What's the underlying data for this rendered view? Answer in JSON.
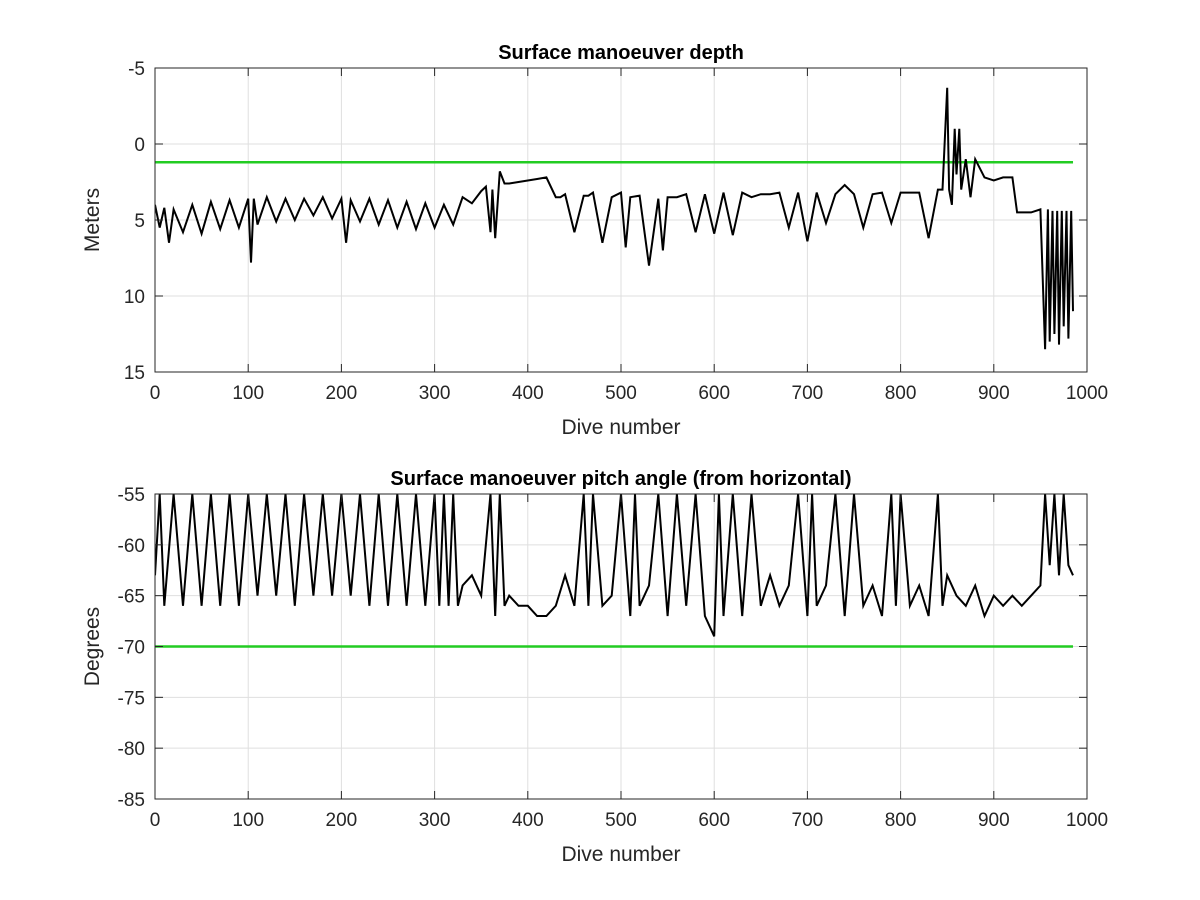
{
  "chart_data": [
    {
      "type": "line",
      "title": "Surface manoeuver depth",
      "xlabel": "Dive number",
      "ylabel": "Meters",
      "xlim": [
        0,
        1000
      ],
      "ylim": [
        -5,
        15
      ],
      "y_reversed": true,
      "grid": true,
      "xticks": [
        0,
        100,
        200,
        300,
        400,
        500,
        600,
        700,
        800,
        900,
        1000
      ],
      "yticks": [
        -5,
        0,
        5,
        10,
        15
      ],
      "threshold": {
        "value": 1.2,
        "x_range": [
          0,
          985
        ],
        "color": "#22cc22"
      },
      "series": [
        {
          "color": "#000000",
          "x": [
            0,
            5,
            10,
            15,
            20,
            30,
            40,
            50,
            60,
            70,
            80,
            90,
            100,
            103,
            106,
            110,
            120,
            130,
            140,
            150,
            160,
            170,
            180,
            190,
            200,
            205,
            210,
            220,
            230,
            240,
            250,
            260,
            270,
            280,
            290,
            300,
            310,
            320,
            330,
            340,
            350,
            355,
            360,
            362,
            365,
            370,
            375,
            380,
            390,
            400,
            410,
            420,
            430,
            435,
            440,
            450,
            460,
            465,
            470,
            480,
            490,
            500,
            505,
            510,
            520,
            530,
            540,
            545,
            550,
            560,
            570,
            580,
            590,
            600,
            610,
            620,
            630,
            640,
            650,
            660,
            670,
            680,
            690,
            700,
            710,
            720,
            730,
            740,
            750,
            760,
            770,
            780,
            790,
            800,
            810,
            820,
            830,
            840,
            845,
            850,
            852,
            855,
            858,
            860,
            863,
            865,
            870,
            875,
            880,
            890,
            900,
            910,
            920,
            925,
            930,
            940,
            950,
            955,
            958,
            960,
            963,
            965,
            968,
            970,
            973,
            975,
            978,
            980,
            983,
            985
          ],
          "y": [
            4.0,
            5.5,
            4.2,
            6.5,
            4.3,
            5.8,
            4.0,
            5.9,
            3.8,
            5.6,
            3.7,
            5.5,
            3.6,
            7.8,
            3.6,
            5.3,
            3.5,
            5.1,
            3.6,
            5.0,
            3.6,
            4.7,
            3.5,
            4.9,
            3.6,
            6.5,
            3.7,
            5.1,
            3.6,
            5.3,
            3.7,
            5.5,
            3.8,
            5.6,
            3.9,
            5.5,
            4.0,
            5.3,
            3.5,
            3.9,
            3.1,
            2.8,
            5.8,
            3.0,
            6.2,
            1.8,
            2.6,
            2.6,
            2.5,
            2.4,
            2.3,
            2.2,
            3.5,
            3.5,
            3.3,
            5.8,
            3.4,
            3.4,
            3.2,
            6.5,
            3.5,
            3.2,
            6.8,
            3.5,
            3.4,
            8.0,
            3.6,
            7.0,
            3.5,
            3.5,
            3.3,
            5.8,
            3.3,
            5.9,
            3.2,
            6.0,
            3.2,
            3.5,
            3.3,
            3.3,
            3.2,
            5.5,
            3.2,
            6.4,
            3.2,
            5.2,
            3.3,
            2.7,
            3.3,
            5.5,
            3.3,
            3.2,
            5.2,
            3.2,
            3.2,
            3.2,
            6.2,
            3.0,
            3.0,
            -3.7,
            3.0,
            4.0,
            -1.0,
            2.0,
            -1.0,
            3.0,
            1.0,
            3.5,
            1.0,
            2.2,
            2.4,
            2.2,
            2.2,
            4.5,
            4.5,
            4.5,
            4.3,
            13.5,
            4.3,
            13.0,
            4.4,
            12.5,
            4.4,
            13.2,
            4.4,
            12.0,
            4.4,
            12.8,
            4.4,
            11.0
          ]
        }
      ]
    },
    {
      "type": "line",
      "title": "Surface manoeuver pitch angle (from horizontal)",
      "xlabel": "Dive number",
      "ylabel": "Degrees",
      "xlim": [
        0,
        1000
      ],
      "ylim": [
        -85,
        -55
      ],
      "grid": true,
      "xticks": [
        0,
        100,
        200,
        300,
        400,
        500,
        600,
        700,
        800,
        900,
        1000
      ],
      "yticks": [
        -85,
        -80,
        -75,
        -70,
        -65,
        -60,
        -55
      ],
      "threshold": {
        "value": -70,
        "x_range": [
          0,
          985
        ],
        "color": "#22cc22"
      },
      "series": [
        {
          "color": "#000000",
          "x": [
            0,
            5,
            10,
            20,
            30,
            40,
            50,
            60,
            70,
            80,
            90,
            100,
            110,
            120,
            130,
            140,
            150,
            160,
            170,
            180,
            190,
            200,
            210,
            220,
            230,
            240,
            250,
            260,
            270,
            280,
            290,
            300,
            305,
            310,
            315,
            320,
            325,
            330,
            340,
            350,
            360,
            365,
            370,
            375,
            380,
            390,
            400,
            410,
            420,
            430,
            440,
            450,
            460,
            465,
            470,
            480,
            490,
            500,
            510,
            515,
            520,
            530,
            540,
            550,
            560,
            570,
            580,
            590,
            600,
            605,
            610,
            620,
            630,
            640,
            650,
            660,
            670,
            680,
            690,
            700,
            705,
            710,
            720,
            730,
            740,
            750,
            760,
            770,
            780,
            790,
            795,
            800,
            810,
            820,
            830,
            840,
            845,
            850,
            860,
            870,
            880,
            890,
            900,
            910,
            920,
            930,
            940,
            950,
            955,
            960,
            965,
            970,
            975,
            980,
            985
          ],
          "y": [
            -63,
            -55,
            -66,
            -55,
            -66,
            -55,
            -66,
            -55,
            -66,
            -55,
            -66,
            -55,
            -65,
            -55,
            -65,
            -55,
            -66,
            -55,
            -65,
            -55,
            -65,
            -55,
            -65,
            -55,
            -66,
            -55,
            -66,
            -55,
            -66,
            -55,
            -66,
            -55,
            -66,
            -55,
            -66,
            -55,
            -66,
            -64,
            -63,
            -65,
            -55,
            -67,
            -55,
            -66,
            -65,
            -66,
            -66,
            -67,
            -67,
            -66,
            -63,
            -66,
            -55,
            -66,
            -55,
            -66,
            -65,
            -55,
            -67,
            -55,
            -66,
            -64,
            -55,
            -67,
            -55,
            -66,
            -55,
            -67,
            -69,
            -55,
            -67,
            -55,
            -67,
            -55,
            -66,
            -63,
            -66,
            -64,
            -55,
            -67,
            -55,
            -66,
            -64,
            -55,
            -67,
            -55,
            -66,
            -64,
            -67,
            -55,
            -66,
            -55,
            -66,
            -64,
            -67,
            -55,
            -66,
            -63,
            -65,
            -66,
            -64,
            -67,
            -65,
            -66,
            -65,
            -66,
            -65,
            -64,
            -55,
            -62,
            -55,
            -63,
            -55,
            -62,
            -63
          ]
        }
      ]
    }
  ]
}
